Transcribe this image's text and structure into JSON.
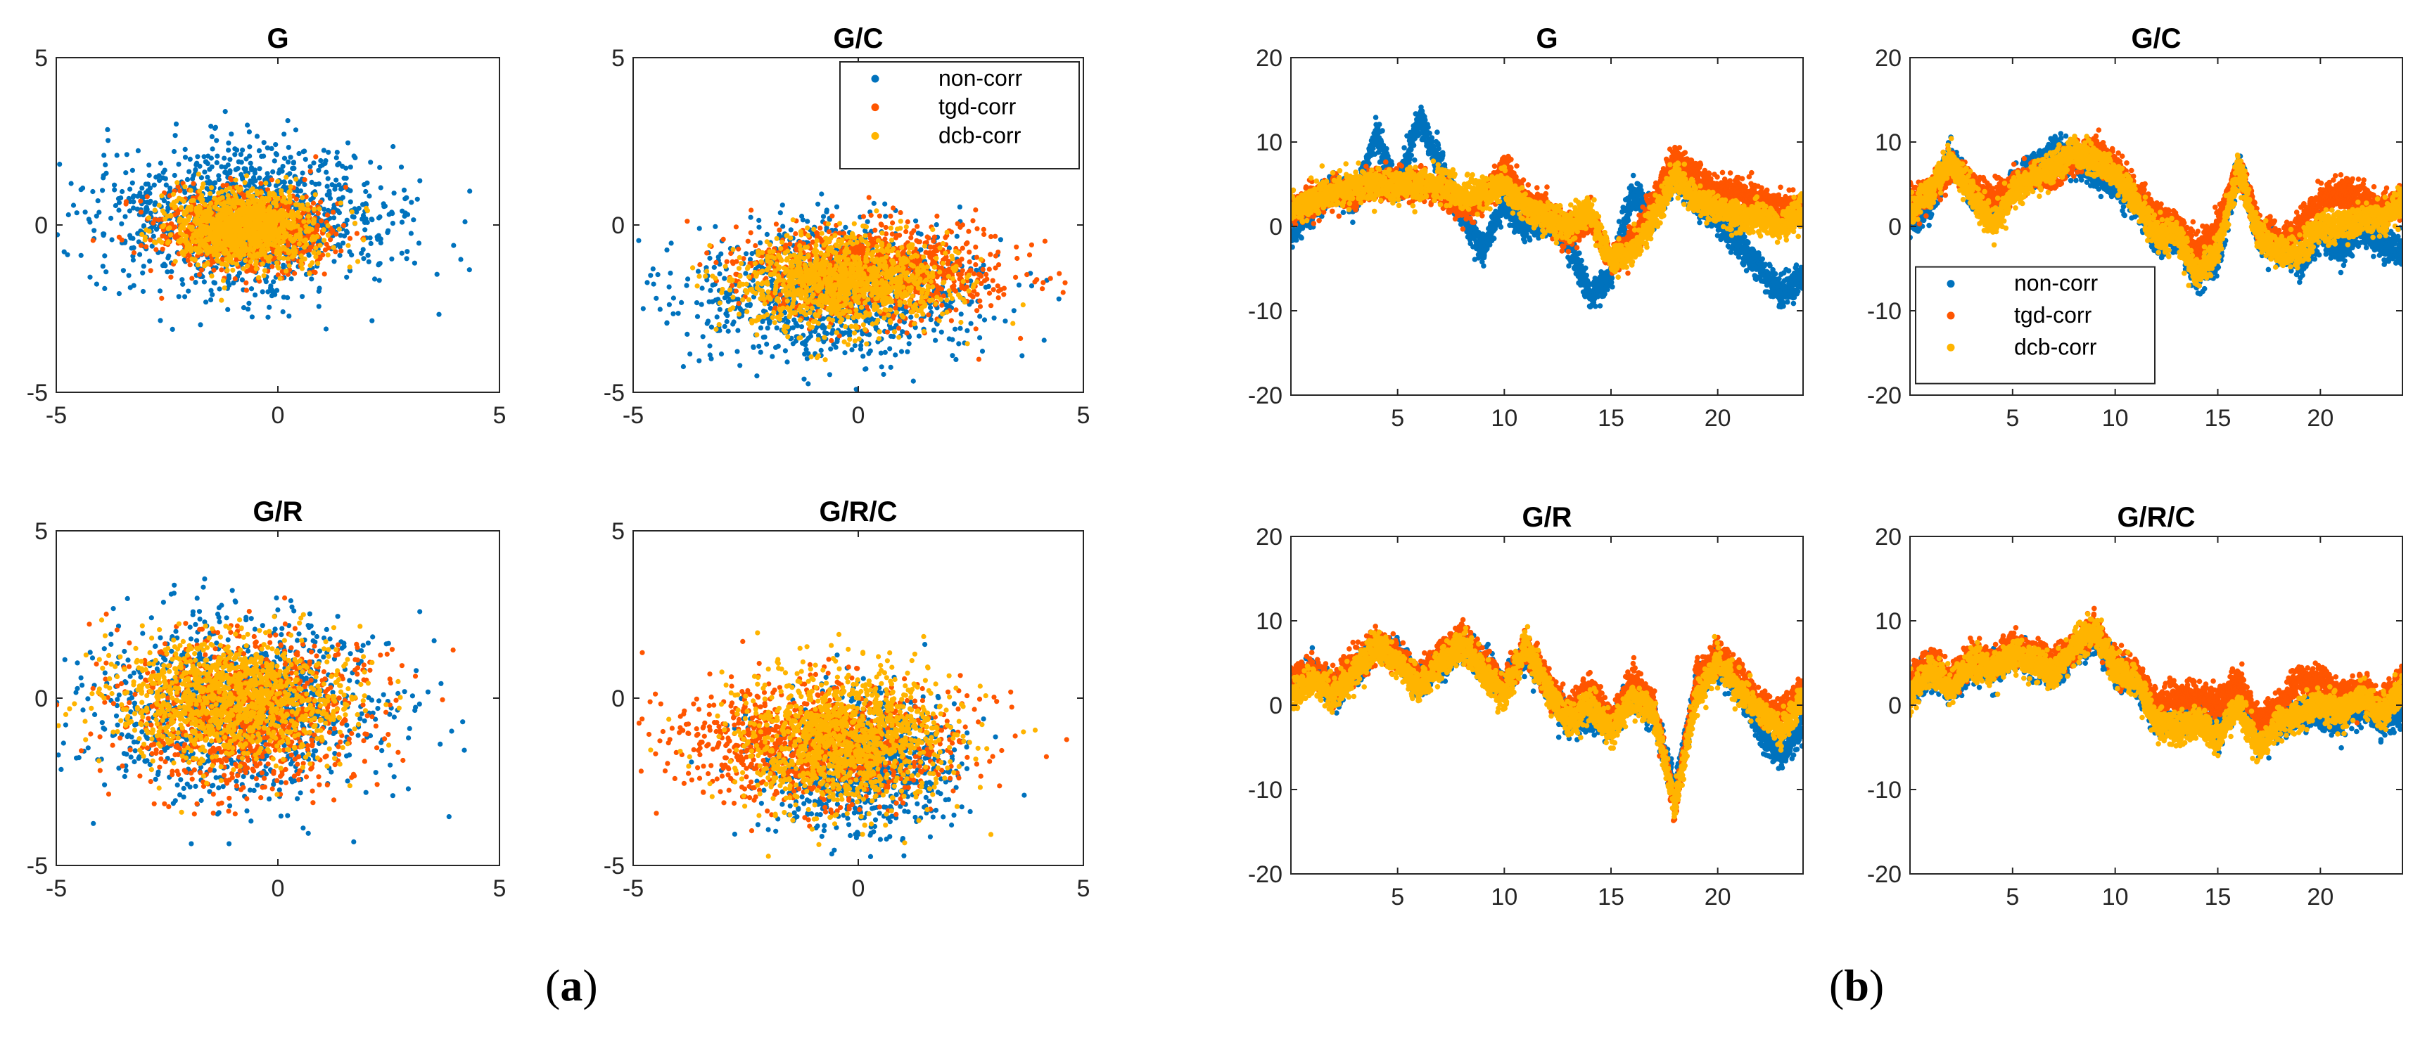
{
  "colors": {
    "non_corr": "#0072BD",
    "tgd_corr": "#FF5500",
    "dcb_corr": "#FFB400",
    "axis": "#262626"
  },
  "panel_labels": {
    "a": "a",
    "b": "b"
  },
  "chart_data": [
    {
      "id": "a-G",
      "type": "scatter",
      "title": "G",
      "xlim": [
        -5,
        5
      ],
      "ylim": [
        -5,
        5
      ],
      "xticks": [
        -5,
        0,
        5
      ],
      "yticks": [
        -5,
        0,
        5
      ],
      "series": [
        {
          "name": "non-corr",
          "cx": -0.8,
          "cy": 0.2,
          "sx": 1.6,
          "sy": 1.1,
          "n": 1300
        },
        {
          "name": "tgd-corr",
          "cx": -0.7,
          "cy": -0.2,
          "sx": 1.0,
          "sy": 0.6,
          "n": 900
        },
        {
          "name": "dcb-corr",
          "cx": -0.8,
          "cy": -0.1,
          "sx": 0.8,
          "sy": 0.55,
          "n": 1100
        }
      ]
    },
    {
      "id": "a-GC",
      "type": "scatter",
      "title": "G/C",
      "xlim": [
        -5,
        5
      ],
      "ylim": [
        -5,
        5
      ],
      "xticks": [
        -5,
        0,
        5
      ],
      "yticks": [
        -5,
        0,
        5
      ],
      "legend": {
        "location": "top-right",
        "entries": [
          "non-corr",
          "tgd-corr",
          "dcb-corr"
        ]
      },
      "series": [
        {
          "name": "non-corr",
          "cx": -0.6,
          "cy": -2.0,
          "sx": 1.6,
          "sy": 1.0,
          "n": 1100
        },
        {
          "name": "tgd-corr",
          "cx": 0.4,
          "cy": -1.4,
          "sx": 1.4,
          "sy": 0.7,
          "n": 1000
        },
        {
          "name": "dcb-corr",
          "cx": -0.3,
          "cy": -1.7,
          "sx": 1.2,
          "sy": 0.7,
          "n": 1100
        }
      ]
    },
    {
      "id": "a-GR",
      "type": "scatter",
      "title": "G/R",
      "xlim": [
        -5,
        5
      ],
      "ylim": [
        -5,
        5
      ],
      "xticks": [
        -5,
        0,
        5
      ],
      "yticks": [
        -5,
        0,
        5
      ],
      "series": [
        {
          "name": "non-corr",
          "cx": -0.9,
          "cy": -0.2,
          "sx": 1.5,
          "sy": 1.3,
          "n": 1200
        },
        {
          "name": "tgd-corr",
          "cx": -0.8,
          "cy": -0.4,
          "sx": 1.4,
          "sy": 1.1,
          "n": 1000
        },
        {
          "name": "dcb-corr",
          "cx": -1.0,
          "cy": 0.0,
          "sx": 1.3,
          "sy": 0.9,
          "n": 1200
        }
      ]
    },
    {
      "id": "a-GRC",
      "type": "scatter",
      "title": "G/R/C",
      "xlim": [
        -5,
        5
      ],
      "ylim": [
        -5,
        5
      ],
      "xticks": [
        -5,
        0,
        5
      ],
      "yticks": [
        -5,
        0,
        5
      ],
      "series": [
        {
          "name": "non-corr",
          "cx": 0.1,
          "cy": -1.9,
          "sx": 1.0,
          "sy": 1.0,
          "n": 900
        },
        {
          "name": "tgd-corr",
          "cx": -1.0,
          "cy": -1.3,
          "sx": 1.6,
          "sy": 0.9,
          "n": 1000
        },
        {
          "name": "dcb-corr",
          "cx": -0.2,
          "cy": -1.2,
          "sx": 1.2,
          "sy": 1.0,
          "n": 1200
        }
      ]
    },
    {
      "id": "b-G",
      "type": "line",
      "title": "G",
      "xlim": [
        0,
        24
      ],
      "ylim": [
        -20,
        20
      ],
      "xticks": [
        5,
        10,
        15,
        20
      ],
      "yticks": [
        -20,
        -10,
        0,
        10,
        20
      ],
      "series": [
        {
          "name": "non-corr",
          "x": [
            0,
            1,
            2,
            3,
            4,
            5,
            6,
            7,
            8,
            9,
            10,
            11,
            12,
            13,
            14,
            15,
            16,
            17,
            18,
            19,
            20,
            21,
            22,
            23,
            24
          ],
          "y": [
            -1,
            2,
            5,
            3,
            11,
            4,
            13,
            7,
            2,
            -3,
            3,
            0,
            1,
            -2,
            -8,
            -6,
            4,
            1,
            6,
            3,
            1,
            -2,
            -5,
            -8,
            -6
          ]
        },
        {
          "name": "tgd-corr",
          "x": [
            0,
            1,
            2,
            3,
            4,
            5,
            6,
            7,
            8,
            9,
            10,
            11,
            12,
            13,
            14,
            15,
            16,
            17,
            18,
            19,
            20,
            21,
            22,
            23,
            24
          ],
          "y": [
            2,
            3,
            4,
            4,
            5,
            5,
            5,
            4,
            2,
            3,
            7,
            3,
            2,
            -1,
            1,
            -4,
            -2,
            3,
            8,
            6,
            4,
            4,
            3,
            2,
            2
          ]
        },
        {
          "name": "dcb-corr",
          "x": [
            0,
            1,
            2,
            3,
            4,
            5,
            6,
            7,
            8,
            9,
            10,
            11,
            12,
            13,
            14,
            15,
            16,
            17,
            18,
            19,
            20,
            21,
            22,
            23,
            24
          ],
          "y": [
            2,
            3,
            4,
            5,
            5,
            5,
            5,
            5,
            4,
            4,
            5,
            2,
            1,
            0,
            2,
            -4,
            -3,
            1,
            6,
            3,
            2,
            1,
            1,
            0,
            2
          ]
        }
      ]
    },
    {
      "id": "b-GC",
      "type": "line",
      "title": "G/C",
      "xlim": [
        0,
        24
      ],
      "ylim": [
        -20,
        20
      ],
      "xticks": [
        5,
        10,
        15,
        20
      ],
      "yticks": [
        -20,
        -10,
        0,
        10,
        20
      ],
      "legend": {
        "location": "left",
        "entries": [
          "non-corr",
          "tgd-corr",
          "dcb-corr"
        ]
      },
      "series": [
        {
          "name": "non-corr",
          "x": [
            0,
            1,
            2,
            3,
            4,
            5,
            6,
            7,
            8,
            9,
            10,
            11,
            12,
            13,
            14,
            15,
            16,
            17,
            18,
            19,
            20,
            21,
            22,
            23,
            24
          ],
          "y": [
            0,
            3,
            8,
            4,
            1,
            5,
            7,
            9,
            8,
            6,
            5,
            3,
            -2,
            -1,
            -6,
            -4,
            7,
            -1,
            -3,
            -4,
            -1,
            -3,
            0,
            -2,
            -3
          ]
        },
        {
          "name": "tgd-corr",
          "x": [
            0,
            1,
            2,
            3,
            4,
            5,
            6,
            7,
            8,
            9,
            10,
            11,
            12,
            13,
            14,
            15,
            16,
            17,
            18,
            19,
            20,
            21,
            22,
            23,
            24
          ],
          "y": [
            3,
            4,
            7,
            5,
            3,
            5,
            6,
            6,
            8,
            9,
            7,
            4,
            1,
            0,
            -3,
            0,
            7,
            0,
            -2,
            0,
            3,
            4,
            3,
            2,
            3
          ]
        },
        {
          "name": "dcb-corr",
          "x": [
            0,
            1,
            2,
            3,
            4,
            5,
            6,
            7,
            8,
            9,
            10,
            11,
            12,
            13,
            14,
            15,
            16,
            17,
            18,
            19,
            20,
            21,
            22,
            23,
            24
          ],
          "y": [
            2,
            4,
            8,
            4,
            0,
            4,
            6,
            7,
            9,
            8,
            6,
            3,
            -1,
            -1,
            -6,
            -3,
            7,
            -1,
            -3,
            -3,
            0,
            0,
            1,
            1,
            3
          ]
        }
      ]
    },
    {
      "id": "b-GR",
      "type": "line",
      "title": "G/R",
      "xlim": [
        0,
        24
      ],
      "ylim": [
        -20,
        20
      ],
      "xticks": [
        5,
        10,
        15,
        20
      ],
      "yticks": [
        -20,
        -10,
        0,
        10,
        20
      ],
      "series": [
        {
          "name": "non-corr",
          "x": [
            0,
            1,
            2,
            3,
            4,
            5,
            6,
            7,
            8,
            9,
            10,
            11,
            12,
            13,
            14,
            15,
            16,
            17,
            18,
            19,
            20,
            21,
            22,
            23,
            24
          ],
          "y": [
            2,
            4,
            1,
            4,
            7,
            6,
            3,
            5,
            7,
            5,
            2,
            6,
            2,
            -2,
            -1,
            -2,
            1,
            -1,
            -10,
            2,
            5,
            2,
            -3,
            -6,
            -2
          ]
        },
        {
          "name": "tgd-corr",
          "x": [
            0,
            1,
            2,
            3,
            4,
            5,
            6,
            7,
            8,
            9,
            10,
            11,
            12,
            13,
            14,
            15,
            16,
            17,
            18,
            19,
            20,
            21,
            22,
            23,
            24
          ],
          "y": [
            3,
            4,
            2,
            5,
            7,
            6,
            3,
            6,
            8,
            5,
            2,
            7,
            3,
            -1,
            2,
            -2,
            3,
            0,
            -12,
            3,
            6,
            4,
            0,
            -1,
            2
          ]
        },
        {
          "name": "dcb-corr",
          "x": [
            0,
            1,
            2,
            3,
            4,
            5,
            6,
            7,
            8,
            9,
            10,
            11,
            12,
            13,
            14,
            15,
            16,
            17,
            18,
            19,
            20,
            21,
            22,
            23,
            24
          ],
          "y": [
            1,
            3,
            1,
            4,
            7,
            5,
            2,
            5,
            7,
            4,
            1,
            7,
            2,
            -2,
            0,
            -3,
            1,
            -1,
            -12,
            1,
            5,
            2,
            -1,
            -3,
            1
          ]
        }
      ]
    },
    {
      "id": "b-GRC",
      "type": "line",
      "title": "G/R/C",
      "xlim": [
        0,
        24
      ],
      "ylim": [
        -20,
        20
      ],
      "xticks": [
        5,
        10,
        15,
        20
      ],
      "yticks": [
        -20,
        -10,
        0,
        10,
        20
      ],
      "series": [
        {
          "name": "non-corr",
          "x": [
            0,
            1,
            2,
            3,
            4,
            5,
            6,
            7,
            8,
            9,
            10,
            11,
            12,
            13,
            14,
            15,
            16,
            17,
            18,
            19,
            20,
            21,
            22,
            23,
            24
          ],
          "y": [
            2,
            4,
            2,
            5,
            4,
            6,
            5,
            4,
            6,
            8,
            4,
            3,
            -2,
            -2,
            -1,
            -3,
            1,
            -4,
            -2,
            -1,
            -1,
            -2,
            0,
            -2,
            -1
          ]
        },
        {
          "name": "tgd-corr",
          "x": [
            0,
            1,
            2,
            3,
            4,
            5,
            6,
            7,
            8,
            9,
            10,
            11,
            12,
            13,
            14,
            15,
            16,
            17,
            18,
            19,
            20,
            21,
            22,
            23,
            24
          ],
          "y": [
            3,
            5,
            3,
            6,
            5,
            7,
            6,
            5,
            7,
            9,
            5,
            4,
            0,
            1,
            1,
            0,
            3,
            -2,
            0,
            3,
            3,
            1,
            2,
            0,
            3
          ]
        },
        {
          "name": "dcb-corr",
          "x": [
            0,
            1,
            2,
            3,
            4,
            5,
            6,
            7,
            8,
            9,
            10,
            11,
            12,
            13,
            14,
            15,
            16,
            17,
            18,
            19,
            20,
            21,
            22,
            23,
            24
          ],
          "y": [
            1,
            4,
            2,
            5,
            4,
            6,
            5,
            4,
            7,
            9,
            4,
            3,
            -2,
            -3,
            -2,
            -4,
            0,
            -5,
            -2,
            -1,
            0,
            -1,
            1,
            -1,
            2
          ]
        }
      ]
    }
  ]
}
